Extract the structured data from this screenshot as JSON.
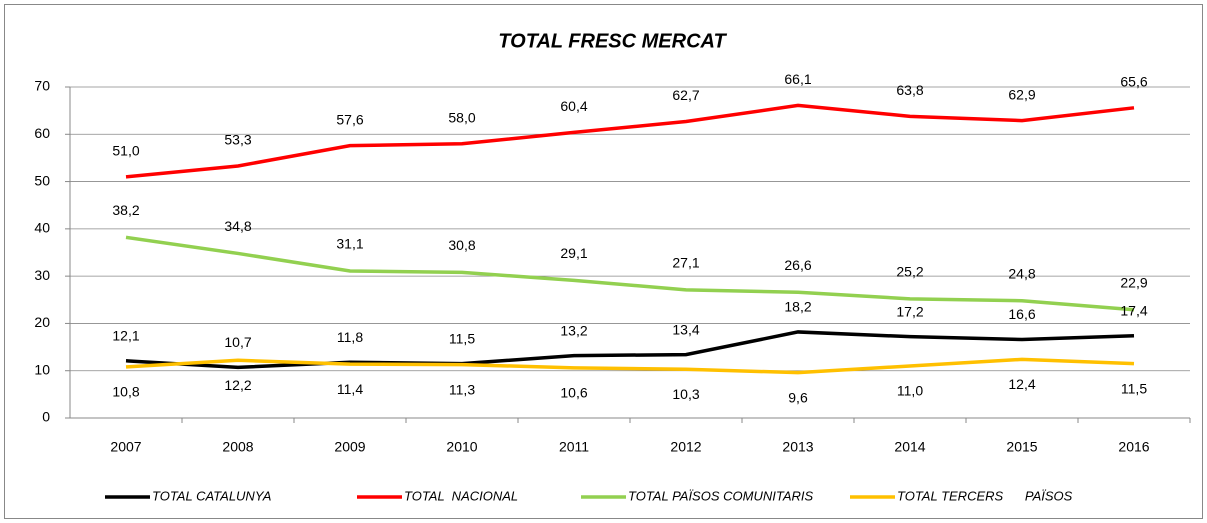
{
  "chart_data": {
    "type": "line",
    "title": "TOTAL FRESC MERCAT",
    "categories": [
      "2007",
      "2008",
      "2009",
      "2010",
      "2011",
      "2012",
      "2013",
      "2014",
      "2015",
      "2016"
    ],
    "ylim": [
      0,
      70
    ],
    "yticks": [
      0,
      10,
      20,
      30,
      40,
      50,
      60,
      70
    ],
    "grid": true,
    "legend": "bottom",
    "series": [
      {
        "name": "TOTAL CATALUNYA",
        "color": "#000000",
        "values": [
          12.1,
          10.7,
          11.8,
          11.5,
          13.2,
          13.4,
          18.2,
          17.2,
          16.6,
          17.4
        ],
        "value_labels": [
          "12,1",
          "10,7",
          "11,8",
          "11,5",
          "13,2",
          "13,4",
          "18,2",
          "17,2",
          "16,6",
          "17,4"
        ]
      },
      {
        "name": "TOTAL  NACIONAL",
        "color": "#ff0000",
        "values": [
          51.0,
          53.3,
          57.6,
          58.0,
          60.4,
          62.7,
          66.1,
          63.8,
          62.9,
          65.6
        ],
        "value_labels": [
          "51,0",
          "53,3",
          "57,6",
          "58,0",
          "60,4",
          "62,7",
          "66,1",
          "63,8",
          "62,9",
          "65,6"
        ]
      },
      {
        "name": "TOTAL PAÏSOS COMUNITARIS",
        "color": "#92d050",
        "values": [
          38.2,
          34.8,
          31.1,
          30.8,
          29.1,
          27.1,
          26.6,
          25.2,
          24.8,
          22.9
        ],
        "value_labels": [
          "38,2",
          "34,8",
          "31,1",
          "30,8",
          "29,1",
          "27,1",
          "26,6",
          "25,2",
          "24,8",
          "22,9"
        ]
      },
      {
        "name": "TOTAL TERCERS      PAÏSOS",
        "color": "#ffc000",
        "values": [
          10.8,
          12.2,
          11.4,
          11.3,
          10.6,
          10.3,
          9.6,
          11.0,
          12.4,
          11.5
        ],
        "value_labels": [
          "10,8",
          "12,2",
          "11,4",
          "11,3",
          "10,6",
          "10,3",
          "9,6",
          "11,0",
          "12,4",
          "11,5"
        ]
      }
    ]
  }
}
